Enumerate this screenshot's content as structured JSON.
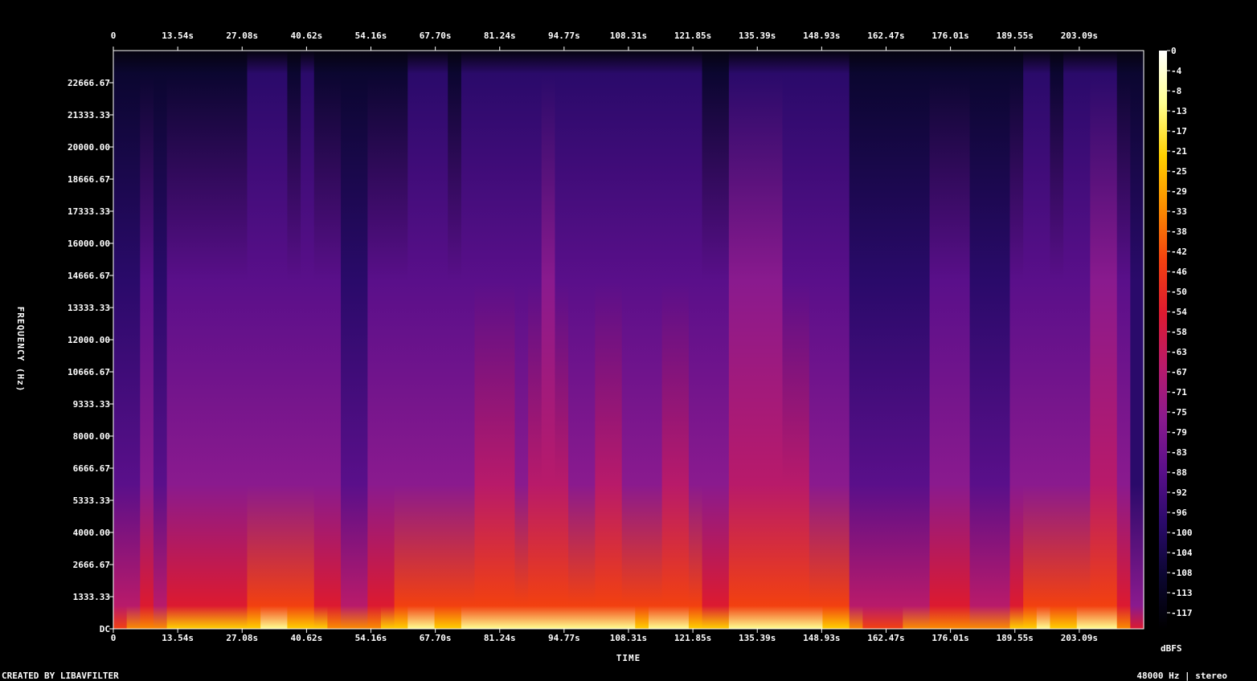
{
  "chart_data": {
    "type": "heatmap",
    "subtype": "spectrogram",
    "xlabel": "TIME",
    "ylabel": "FREQUENCY (Hz)",
    "x_ticks": [
      "0",
      "13.54s",
      "27.08s",
      "40.62s",
      "54.16s",
      "67.70s",
      "81.24s",
      "94.77s",
      "108.31s",
      "121.85s",
      "135.39s",
      "148.93s",
      "162.47s",
      "176.01s",
      "189.55s",
      "203.09s"
    ],
    "x_tick_values_s": [
      0,
      13.54,
      27.08,
      40.62,
      54.16,
      67.7,
      81.24,
      94.77,
      108.31,
      121.85,
      135.39,
      148.93,
      162.47,
      176.01,
      189.55,
      203.09
    ],
    "xlim_s": [
      0,
      216.63
    ],
    "y_ticks": [
      "DC",
      "1333.33",
      "2666.67",
      "4000.00",
      "5333.33",
      "6666.67",
      "8000.00",
      "9333.33",
      "10666.67",
      "12000.00",
      "13333.33",
      "14666.67",
      "16000.00",
      "17333.33",
      "18666.67",
      "20000.00",
      "21333.33",
      "22666.67"
    ],
    "y_tick_values_hz": [
      0,
      1333.33,
      2666.67,
      4000,
      5333.33,
      6666.67,
      8000,
      9333.33,
      10666.67,
      12000,
      13333.33,
      14666.67,
      16000,
      17333.33,
      18666.67,
      20000,
      21333.33,
      22666.67
    ],
    "ylim_hz": [
      0,
      24000
    ],
    "colorbar": {
      "label": "dBFS",
      "ticks": [
        "0",
        "-4",
        "-8",
        "-13",
        "-17",
        "-21",
        "-25",
        "-29",
        "-33",
        "-38",
        "-42",
        "-46",
        "-50",
        "-54",
        "-58",
        "-63",
        "-67",
        "-71",
        "-75",
        "-79",
        "-83",
        "-88",
        "-92",
        "-96",
        "-100",
        "-104",
        "-108",
        "-113",
        "-117"
      ],
      "range_dbfs": [
        -120,
        0
      ]
    },
    "energy_profile": [
      0.4,
      0.52,
      0.6,
      0.55,
      0.68,
      0.72,
      0.7,
      0.64,
      0.7,
      0.75,
      0.8,
      0.85,
      0.82,
      0.78,
      0.8,
      0.7,
      0.62,
      0.55,
      0.5,
      0.58,
      0.7,
      0.78,
      0.85,
      0.82,
      0.8,
      0.78,
      0.82,
      0.86,
      0.88,
      0.86,
      0.84,
      0.88,
      0.9,
      0.86,
      0.82,
      0.84,
      0.88,
      0.86,
      0.84,
      0.8,
      0.84,
      0.86,
      0.88,
      0.8,
      0.74,
      0.72,
      0.9,
      0.95,
      0.92,
      0.9,
      0.88,
      0.86,
      0.82,
      0.8,
      0.8,
      0.55,
      0.45,
      0.42,
      0.45,
      0.48,
      0.55,
      0.58,
      0.6,
      0.62,
      0.55,
      0.5,
      0.48,
      0.68,
      0.8,
      0.82,
      0.78,
      0.8,
      0.82,
      0.9,
      0.92,
      0.6,
      0.25
    ],
    "colors": {
      "background": "#000000",
      "gradient": [
        "#000000",
        "#0b0630",
        "#2a0a6a",
        "#5a0f8a",
        "#8a1a8e",
        "#b81a6a",
        "#dc1a30",
        "#f24010",
        "#fb8c00",
        "#ffd000",
        "#ffff90",
        "#ffffff"
      ]
    }
  },
  "footer": {
    "created_by": "CREATED BY LIBAVFILTER",
    "format_info": "48000 Hz | stereo"
  }
}
